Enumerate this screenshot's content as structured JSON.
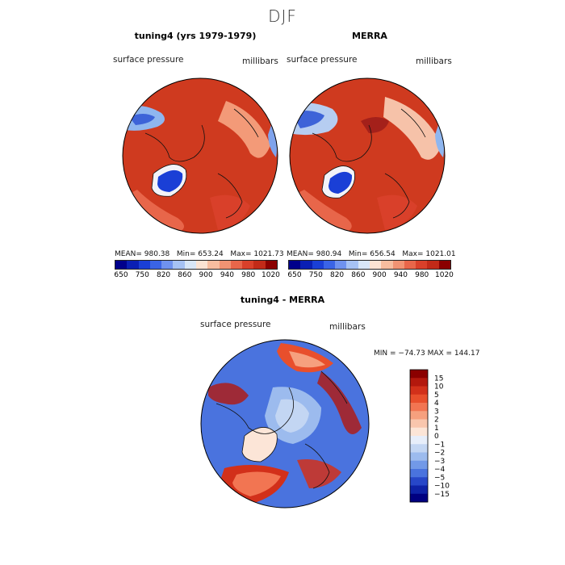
{
  "figure": {
    "suptitle": "DJF",
    "panels": {
      "model": {
        "title": "tuning4 (yrs 1979-1979)",
        "variable": "surface pressure",
        "units": "millibars",
        "stats_mean_label": "MEAN=",
        "stats_mean_value": "980.38",
        "stats_min_label": "Min=",
        "stats_min_value": "653.24",
        "stats_max_label": "Max=",
        "stats_max_value": "1021.73"
      },
      "obs": {
        "title": "MERRA",
        "variable": "surface pressure",
        "units": "millibars",
        "stats_mean_label": "MEAN=",
        "stats_mean_value": "980.94",
        "stats_min_label": "Min=",
        "stats_min_value": "656.54",
        "stats_max_label": "Max=",
        "stats_max_value": "1021.01"
      },
      "diff": {
        "title": "tuning4 - MERRA",
        "variable": "surface pressure",
        "units": "millibars",
        "minmax_text": "MIN = −74.73 MAX = 144.17"
      }
    },
    "colorbar_top": {
      "tick_labels": [
        "650",
        "750",
        "820",
        "860",
        "900",
        "940",
        "980",
        "1020"
      ],
      "colors": [
        "#00008b",
        "#0a1fb4",
        "#1a3fd6",
        "#3a64e6",
        "#6f92ef",
        "#a6c2f4",
        "#d8e6f7",
        "#fbe3d3",
        "#f7bd9f",
        "#f19373",
        "#e8664a",
        "#d9402a",
        "#c22a18",
        "#8b0000"
      ]
    },
    "colorbar_diff": {
      "labels": [
        "15",
        "10",
        "5",
        "4",
        "3",
        "2",
        "1",
        "0",
        "−1",
        "−2",
        "−3",
        "−4",
        "−5",
        "−10",
        "−15"
      ],
      "colors": [
        "#8b0000",
        "#b3180d",
        "#d2301a",
        "#e84f2c",
        "#f27552",
        "#f6a07e",
        "#f9c6ad",
        "#fce5d7",
        "#e7eefa",
        "#c3d6f3",
        "#9cbbee",
        "#7299e8",
        "#4a73de",
        "#2747c8",
        "#0e22a6",
        "#000080"
      ]
    }
  },
  "chart_data": [
    {
      "type": "heatmap",
      "title": "tuning4 (yrs 1979-1979)",
      "projection": "north polar stereographic",
      "variable": "surface pressure",
      "units": "millibars",
      "mean": 980.38,
      "min": 653.24,
      "max": 1021.73,
      "colorbar_levels": [
        650,
        750,
        820,
        860,
        900,
        940,
        980,
        1020
      ]
    },
    {
      "type": "heatmap",
      "title": "MERRA",
      "projection": "north polar stereographic",
      "variable": "surface pressure",
      "units": "millibars",
      "mean": 980.94,
      "min": 656.54,
      "max": 1021.01,
      "colorbar_levels": [
        650,
        750,
        820,
        860,
        900,
        940,
        980,
        1020
      ]
    },
    {
      "type": "heatmap",
      "title": "tuning4 - MERRA",
      "projection": "north polar stereographic",
      "variable": "surface pressure",
      "units": "millibars",
      "min": -74.73,
      "max": 144.17,
      "colorbar_levels": [
        -15,
        -10,
        -5,
        -4,
        -3,
        -2,
        -1,
        0,
        1,
        2,
        3,
        4,
        5,
        10,
        15
      ]
    }
  ]
}
